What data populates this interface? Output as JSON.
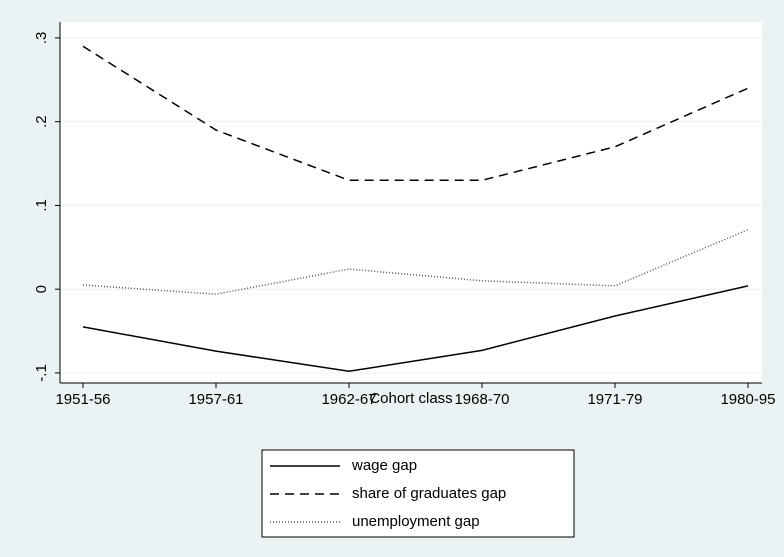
{
  "chart_data": {
    "type": "line",
    "x_label": "Cohort class",
    "categories": [
      "1951-56",
      "1957-61",
      "1962-67",
      "1968-70",
      "1971-79",
      "1980-95"
    ],
    "series": [
      {
        "name": "wage gap",
        "color": "#000000",
        "dash": "solid",
        "values": [
          -0.045,
          -0.074,
          -0.098,
          -0.073,
          -0.032,
          0.004
        ]
      },
      {
        "name": "share of graduates gap",
        "color": "#000000",
        "dash": "dashed",
        "values": [
          0.29,
          0.19,
          0.13,
          0.13,
          0.17,
          0.24
        ]
      },
      {
        "name": "unemployment gap",
        "color": "#555555",
        "dash": "dotted",
        "values": [
          0.005,
          -0.006,
          0.024,
          0.01,
          0.004,
          0.071
        ]
      }
    ],
    "ylim": [
      -0.112,
      0.319
    ],
    "yticks": [
      {
        "value": -0.1,
        "label": "-.1"
      },
      0,
      {
        "value": 0.1,
        "label": ".1"
      },
      {
        "value": 0.2,
        "label": ".2"
      },
      {
        "value": 0.3,
        "label": ".3"
      }
    ],
    "grid": true
  }
}
